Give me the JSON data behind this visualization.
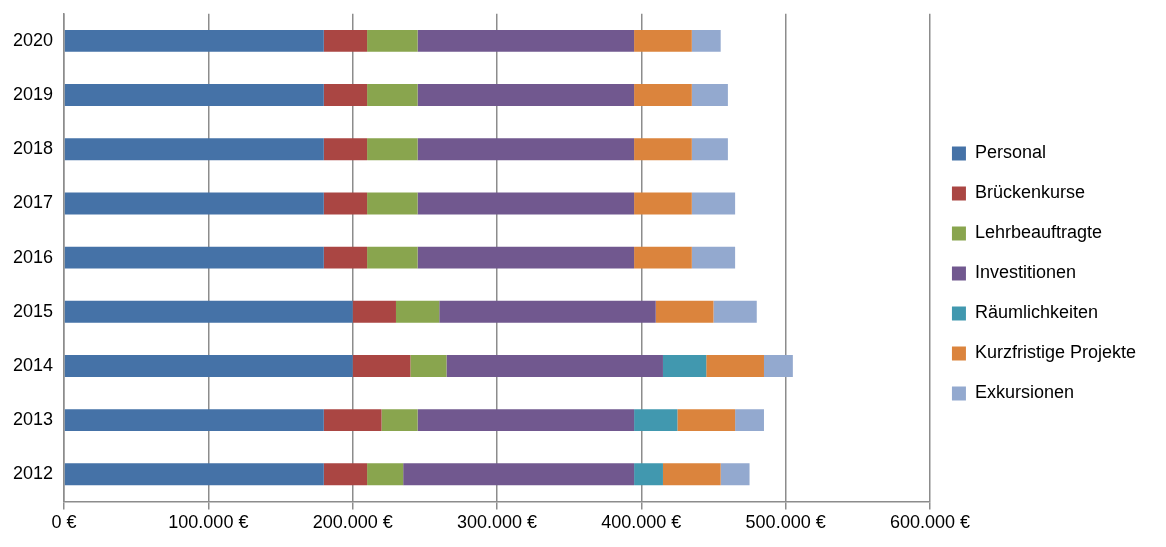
{
  "chart_data": {
    "type": "bar",
    "orientation": "horizontal",
    "stacked": true,
    "categories": [
      "2020",
      "2019",
      "2018",
      "2017",
      "2016",
      "2015",
      "2014",
      "2013",
      "2012"
    ],
    "series": [
      {
        "name": "Personal",
        "color": "#4572a7",
        "values": [
          180000,
          180000,
          180000,
          180000,
          180000,
          200000,
          200000,
          180000,
          180000
        ]
      },
      {
        "name": "Brückenkurse",
        "color": "#aa4643",
        "values": [
          30000,
          30000,
          30000,
          30000,
          30000,
          30000,
          40000,
          40000,
          30000
        ]
      },
      {
        "name": "Lehrbeauftragte",
        "color": "#89a54e",
        "values": [
          35000,
          35000,
          35000,
          35000,
          35000,
          30000,
          25000,
          25000,
          25000
        ]
      },
      {
        "name": "Investitionen",
        "color": "#71588f",
        "values": [
          150000,
          150000,
          150000,
          150000,
          150000,
          150000,
          150000,
          150000,
          160000
        ]
      },
      {
        "name": "Räumlichkeiten",
        "color": "#4198af",
        "values": [
          0,
          0,
          0,
          0,
          0,
          0,
          30000,
          30000,
          20000
        ]
      },
      {
        "name": "Kurzfristige Projekte",
        "color": "#db843d",
        "values": [
          40000,
          40000,
          40000,
          40000,
          40000,
          40000,
          40000,
          40000,
          40000
        ]
      },
      {
        "name": "Exkursionen",
        "color": "#93a9cf",
        "values": [
          20000,
          25000,
          25000,
          30000,
          30000,
          30000,
          20000,
          20000,
          20000
        ]
      }
    ],
    "xlim": [
      0,
      600000
    ],
    "xticks": [
      {
        "value": 0,
        "label": "0 €"
      },
      {
        "value": 100000,
        "label": "100.000 €"
      },
      {
        "value": 200000,
        "label": "200.000 €"
      },
      {
        "value": 300000,
        "label": "300.000 €"
      },
      {
        "value": 400000,
        "label": "400.000 €"
      },
      {
        "value": 500000,
        "label": "500.000 €"
      },
      {
        "value": 600000,
        "label": "600.000 €"
      }
    ],
    "grid": "x",
    "legend": "right"
  }
}
